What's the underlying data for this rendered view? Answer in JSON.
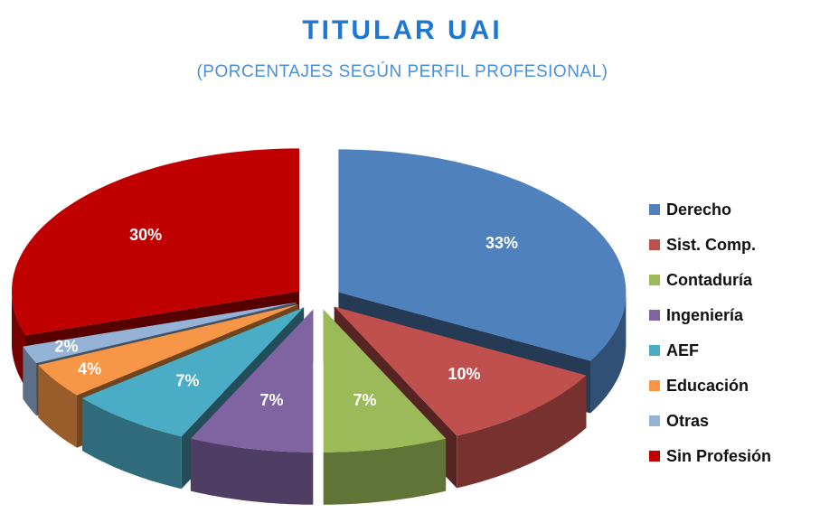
{
  "chart_data": {
    "type": "pie",
    "title": "TITULAR   UAI",
    "subtitle": "(PORCENTAJES SEGÚN PERFIL PROFESIONAL)",
    "categories": [
      "Derecho",
      "Sist. Comp.",
      "Contaduría",
      "Ingeniería",
      "AEF",
      "Educación",
      "Otras",
      "Sin Profesión"
    ],
    "values": [
      33,
      10,
      7,
      7,
      7,
      4,
      2,
      30
    ],
    "value_labels": [
      "33%",
      "10%",
      "7%",
      "7%",
      "7%",
      "4%",
      "2%",
      "30%"
    ],
    "colors": [
      "#4f81bd",
      "#c0504d",
      "#9bbb59",
      "#8064a2",
      "#4bacc6",
      "#f79646",
      "#95b3d7",
      "#c00000"
    ],
    "legend": "right"
  }
}
